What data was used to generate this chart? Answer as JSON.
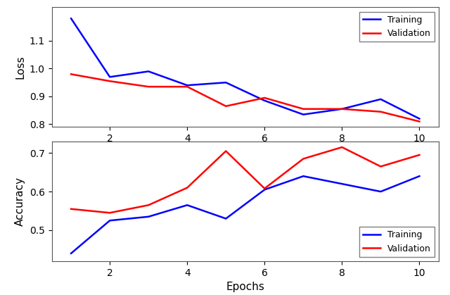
{
  "epochs": [
    1,
    2,
    3,
    4,
    5,
    6,
    7,
    8,
    9,
    10
  ],
  "loss_train": [
    1.18,
    0.97,
    0.99,
    0.94,
    0.95,
    0.885,
    0.835,
    0.855,
    0.89,
    0.82
  ],
  "loss_val": [
    0.98,
    0.955,
    0.935,
    0.935,
    0.865,
    0.895,
    0.855,
    0.855,
    0.845,
    0.81
  ],
  "acc_train": [
    0.44,
    0.525,
    0.535,
    0.565,
    0.53,
    0.605,
    0.64,
    0.62,
    0.6,
    0.64
  ],
  "acc_val": [
    0.555,
    0.545,
    0.565,
    0.61,
    0.705,
    0.608,
    0.685,
    0.715,
    0.665,
    0.695
  ],
  "train_color": "#0000ff",
  "val_color": "#ff0000",
  "loss_ylim": [
    0.79,
    1.22
  ],
  "acc_ylim": [
    0.42,
    0.73
  ],
  "loss_yticks": [
    0.8,
    0.9,
    1.0,
    1.1
  ],
  "acc_yticks": [
    0.5,
    0.6,
    0.7
  ],
  "xticks": [
    2,
    4,
    6,
    8,
    10
  ],
  "xlabel": "Epochs",
  "loss_ylabel": "Loss",
  "acc_ylabel": "Accuracy",
  "linewidth": 1.8,
  "legend_train": "Training",
  "legend_val": "Validation",
  "fig_width": 6.4,
  "fig_height": 4.19,
  "dpi": 100
}
